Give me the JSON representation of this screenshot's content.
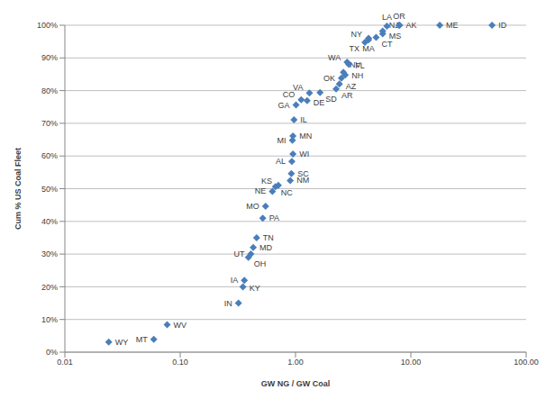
{
  "chart_data": {
    "type": "scatter",
    "x_label": "GW NG / GW Coal",
    "y_label": "Cum % US Coal Fleet",
    "labels": [
      "WY",
      "MT",
      "WV",
      "IN",
      "KY",
      "IA",
      "OH",
      "UT",
      "MD",
      "TN",
      "PA",
      "MO",
      "NE",
      "NC",
      "KS",
      "NM",
      "SC",
      "AL",
      "WI",
      "MI",
      "MN",
      "IL",
      "GA",
      "CO",
      "DE",
      "VA",
      "SD",
      "AR",
      "AZ",
      "OK",
      "NH",
      "NV",
      "FL",
      "WA",
      "TX",
      "MA",
      "NY",
      "CT",
      "MS",
      "NJ",
      "LA",
      "OR",
      "AK",
      "ME",
      "ID"
    ],
    "x": [
      0.024,
      0.059,
      0.077,
      0.32,
      0.35,
      0.36,
      0.39,
      0.41,
      0.43,
      0.46,
      0.52,
      0.55,
      0.63,
      0.67,
      0.71,
      0.9,
      0.92,
      0.93,
      0.95,
      0.94,
      0.95,
      0.97,
      1.01,
      1.12,
      1.26,
      1.32,
      1.63,
      2.25,
      2.4,
      2.5,
      2.7,
      2.6,
      2.9,
      2.8,
      4.0,
      4.3,
      4.3,
      5.0,
      5.7,
      5.7,
      6.2,
      7.9,
      8.0,
      17.8,
      50.6
    ],
    "values": [
      3.1,
      3.9,
      8.4,
      15,
      20,
      22,
      29,
      30,
      32,
      35,
      41,
      44.6,
      49.2,
      50.6,
      51,
      52.5,
      54.6,
      58.3,
      60.6,
      64.8,
      66.1,
      71.1,
      75.6,
      77.2,
      76.9,
      79.3,
      79.4,
      80.5,
      82,
      83.8,
      84.8,
      85.6,
      88,
      88.7,
      94.8,
      95.5,
      96,
      96.3,
      97.4,
      98.2,
      99.7,
      100,
      100,
      100,
      100
    ],
    "color": "#4a7ebb",
    "marker": "diamond",
    "log": "x",
    "grid": true,
    "xlim": [
      0.01,
      100
    ],
    "xticks": [
      0.01,
      {
        "value": 0.1,
        "label": "0.10"
      },
      {
        "value": 1,
        "label": "1.00"
      },
      {
        "value": 10,
        "label": "10.00"
      },
      {
        "value": 100,
        "label": "100.00"
      }
    ],
    "ylim": [
      0,
      100
    ],
    "yticks": [
      {
        "value": 0,
        "label": "0%"
      },
      {
        "value": 10,
        "label": "10%"
      },
      {
        "value": 20,
        "label": "20%"
      },
      {
        "value": 30,
        "label": "30%"
      },
      {
        "value": 40,
        "label": "40%"
      },
      {
        "value": 50,
        "label": "50%"
      },
      {
        "value": 60,
        "label": "60%"
      },
      {
        "value": 70,
        "label": "70%"
      },
      {
        "value": 80,
        "label": "80%"
      },
      {
        "value": 90,
        "label": "90%"
      },
      {
        "value": 100,
        "label": "100%"
      }
    ]
  }
}
